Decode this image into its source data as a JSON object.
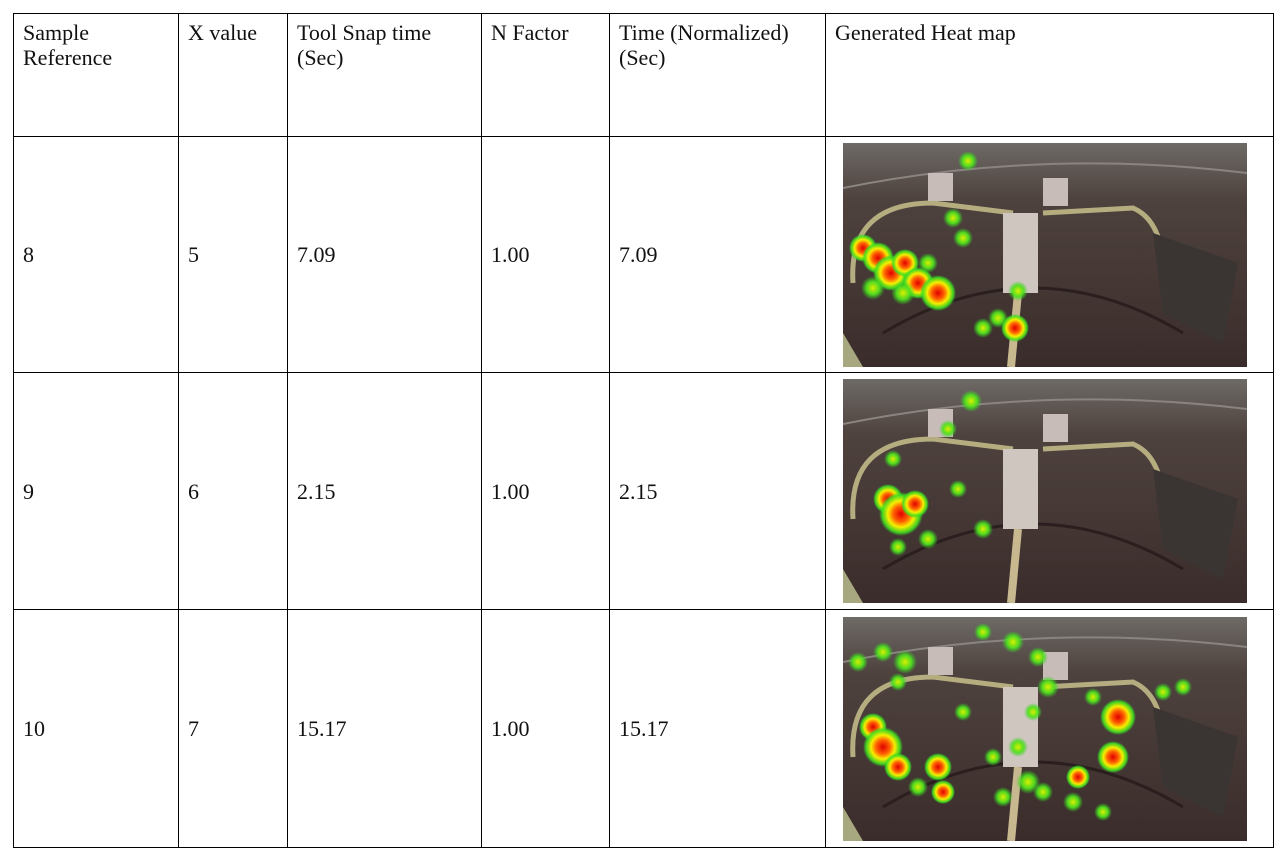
{
  "table": {
    "header": [
      "Sample Reference",
      "X value",
      "Tool Snap time (Sec)",
      "N Factor",
      "Time (Normalized) (Sec)",
      "Generated Heat map"
    ],
    "rows": [
      [
        "8",
        "5",
        "7.09",
        "1.00",
        "7.09"
      ],
      [
        "9",
        "6",
        "2.15",
        "1.00",
        "2.15"
      ],
      [
        "10",
        "7",
        "15.17",
        "1.00",
        "15.17"
      ]
    ]
  }
}
